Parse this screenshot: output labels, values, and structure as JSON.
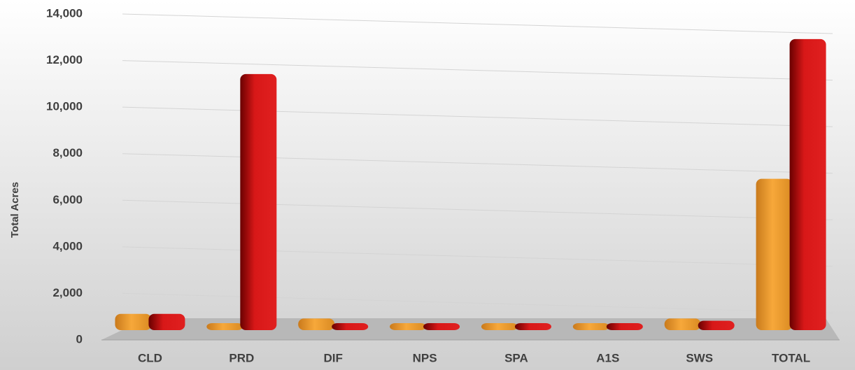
{
  "chart_data": {
    "type": "bar3d",
    "y_label": "Total Acres",
    "categories": [
      "CLD",
      "PRD",
      "DIF",
      "NPS",
      "SPA",
      "A1S",
      "SWS",
      "TOTAL"
    ],
    "series": [
      {
        "color": "#f5a030",
        "values": [
          700,
          100,
          500,
          50,
          50,
          50,
          500,
          6500
        ]
      },
      {
        "color": "#d81818",
        "values": [
          700,
          11000,
          100,
          50,
          50,
          50,
          400,
          12500
        ]
      }
    ],
    "ylim": [
      0,
      14000
    ],
    "yticks": [
      0,
      {
        "value": 2000,
        "label": "2,000"
      },
      {
        "value": 4000,
        "label": "4,000"
      },
      {
        "value": 6000,
        "label": "6,000"
      },
      {
        "value": 8000,
        "label": "8,000"
      },
      {
        "value": 10000,
        "label": "10,000"
      },
      {
        "value": 12000,
        "label": "12,000"
      },
      {
        "value": 14000,
        "label": "14,000"
      }
    ],
    "grid": true
  }
}
